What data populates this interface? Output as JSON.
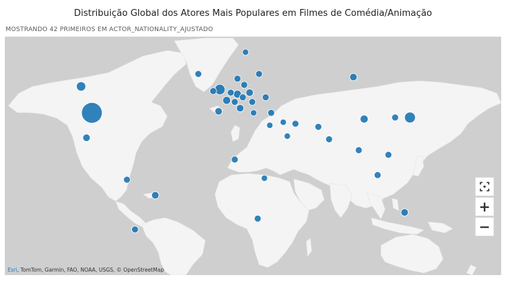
{
  "title": "Distribuição Global dos Atores Mais Populares em Filmes de Comédia/Animação",
  "subtitle": "MOSTRANDO 42 PRIMEIROS EM ACTOR_NATIONALITY_AJUSTADO",
  "attribution": {
    "esri": "Esri",
    "rest": ", TomTom, Garmin, FAO, NOAA, USGS, © OpenStreetMap"
  },
  "colors": {
    "bubble": "#1f77b4",
    "land": "#f4f4f4",
    "water": "#cfcfcf"
  },
  "controls": {
    "fit_icon": "fit-extent-icon",
    "zoom_in": "+",
    "zoom_out": "−"
  },
  "chart_data": {
    "type": "scatter",
    "description_unit": "bubble size = relative count of actors",
    "points": [
      {
        "lon": -98,
        "lat": 39,
        "size": 10
      },
      {
        "lon": -106,
        "lat": 56,
        "size": 2.2
      },
      {
        "lon": -102,
        "lat": 23,
        "size": 1.4
      },
      {
        "lon": -51,
        "lat": -14,
        "size": 1.4
      },
      {
        "lon": -72,
        "lat": -4,
        "size": 1.2
      },
      {
        "lon": -66,
        "lat": -36,
        "size": 1.2
      },
      {
        "lon": -19,
        "lat": 64,
        "size": 1.2
      },
      {
        "lon": -3,
        "lat": 54,
        "size": 2.8
      },
      {
        "lon": -8,
        "lat": 53,
        "size": 1.2
      },
      {
        "lon": 16,
        "lat": 78,
        "size": 1.0
      },
      {
        "lon": 10,
        "lat": 61,
        "size": 1.2
      },
      {
        "lon": 26,
        "lat": 64,
        "size": 1.2
      },
      {
        "lon": 15,
        "lat": 57,
        "size": 1.2
      },
      {
        "lon": 10,
        "lat": 51,
        "size": 1.6
      },
      {
        "lon": 2,
        "lat": 47,
        "size": 1.6
      },
      {
        "lon": 5,
        "lat": 52,
        "size": 1.2
      },
      {
        "lon": 19,
        "lat": 52,
        "size": 1.4
      },
      {
        "lon": 14,
        "lat": 49,
        "size": 1.2
      },
      {
        "lon": 21,
        "lat": 46,
        "size": 1.2
      },
      {
        "lon": 8,
        "lat": 46,
        "size": 1.2
      },
      {
        "lon": 31,
        "lat": 49,
        "size": 1.2
      },
      {
        "lon": -4,
        "lat": 40,
        "size": 1.4
      },
      {
        "lon": 12,
        "lat": 42,
        "size": 1.4
      },
      {
        "lon": 22,
        "lat": 39,
        "size": 1.0
      },
      {
        "lon": 35,
        "lat": 39,
        "size": 1.2
      },
      {
        "lon": 53,
        "lat": 32,
        "size": 1.2
      },
      {
        "lon": 44,
        "lat": 33,
        "size": 1.0
      },
      {
        "lon": 34,
        "lat": 31,
        "size": 1.0
      },
      {
        "lon": 70,
        "lat": 30,
        "size": 1.2
      },
      {
        "lon": 47,
        "lat": 24,
        "size": 1.0
      },
      {
        "lon": 78,
        "lat": 22,
        "size": 1.2
      },
      {
        "lon": 104,
        "lat": 35,
        "size": 1.6
      },
      {
        "lon": 100,
        "lat": 15,
        "size": 1.2
      },
      {
        "lon": 127,
        "lat": 36,
        "size": 1.2
      },
      {
        "lon": 138,
        "lat": 36,
        "size": 3.0
      },
      {
        "lon": 96,
        "lat": 62,
        "size": 1.4
      },
      {
        "lon": 122,
        "lat": 12,
        "size": 1.2
      },
      {
        "lon": 114,
        "lat": -1,
        "size": 1.2
      },
      {
        "lon": 134,
        "lat": -25,
        "size": 1.4
      },
      {
        "lon": 8,
        "lat": 9,
        "size": 1.2
      },
      {
        "lon": 25,
        "lat": -29,
        "size": 1.2
      },
      {
        "lon": 30,
        "lat": -3,
        "size": 1.0
      }
    ]
  }
}
